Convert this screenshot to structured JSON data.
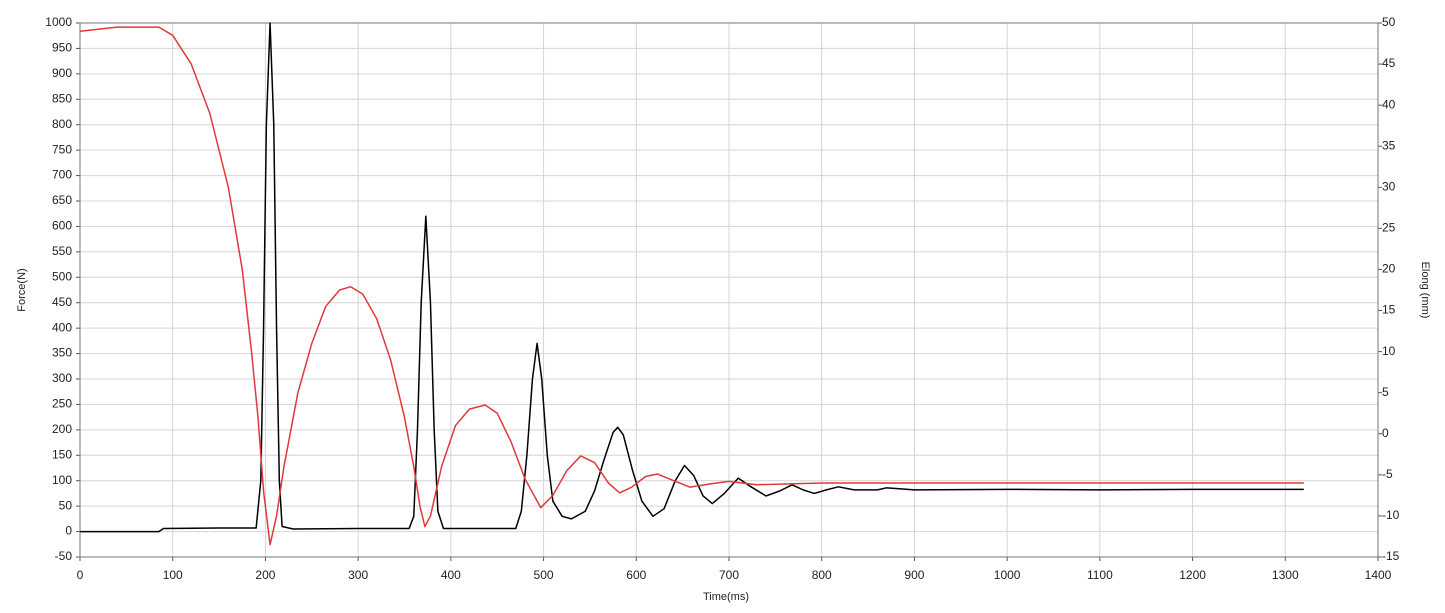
{
  "chart_data": {
    "type": "line",
    "x_label": "Time(ms)",
    "y_label": "Force(N)",
    "y2_label": "Elong (mm)",
    "xlim": [
      0,
      1400
    ],
    "xticks": [
      0,
      100,
      200,
      300,
      400,
      500,
      600,
      700,
      800,
      900,
      1000,
      1100,
      1200,
      1300,
      1400
    ],
    "ylim": [
      -50,
      1000
    ],
    "yticks": [
      -50,
      0,
      50,
      100,
      150,
      200,
      250,
      300,
      350,
      400,
      450,
      500,
      550,
      600,
      650,
      700,
      750,
      800,
      850,
      900,
      950,
      1000
    ],
    "y2lim": [
      -15,
      50
    ],
    "y2ticks": [
      -15,
      -10,
      -5,
      0,
      5,
      10,
      15,
      20,
      25,
      30,
      35,
      40,
      45,
      50
    ],
    "grid": true,
    "series": [
      {
        "name": "Force",
        "color": "#000000",
        "x": [
          0,
          50,
          85,
          90,
          150,
          190,
          195,
          198,
          201,
          205,
          209,
          212,
          215,
          218,
          230,
          300,
          355,
          360,
          364,
          368,
          373,
          378,
          382,
          386,
          392,
          470,
          476,
          482,
          488,
          493,
          498,
          504,
          510,
          520,
          530,
          545,
          555,
          565,
          575,
          580,
          586,
          596,
          606,
          618,
          630,
          642,
          652,
          662,
          672,
          682,
          695,
          710,
          722,
          740,
          755,
          768,
          780,
          792,
          805,
          818,
          835,
          860,
          870,
          900,
          1000,
          1100,
          1200,
          1320
        ],
        "values": [
          0,
          0,
          0,
          6,
          7,
          7,
          100,
          400,
          800,
          1000,
          800,
          400,
          100,
          10,
          5,
          6,
          6,
          30,
          200,
          450,
          620,
          450,
          200,
          40,
          6,
          6,
          40,
          150,
          300,
          370,
          300,
          150,
          60,
          30,
          25,
          40,
          80,
          140,
          195,
          205,
          190,
          120,
          60,
          30,
          45,
          100,
          130,
          110,
          70,
          55,
          75,
          105,
          90,
          70,
          80,
          92,
          82,
          75,
          82,
          88,
          82,
          82,
          86,
          82,
          83,
          82,
          83,
          83
        ]
      },
      {
        "name": "Elong",
        "color": "#e0393a",
        "axis": "y2",
        "x": [
          0,
          40,
          85,
          100,
          120,
          140,
          160,
          175,
          185,
          192,
          198,
          205,
          212,
          220,
          235,
          250,
          265,
          280,
          292,
          305,
          320,
          335,
          350,
          360,
          367,
          372,
          378,
          390,
          405,
          420,
          437,
          450,
          465,
          480,
          497,
          510,
          525,
          540,
          555,
          570,
          582,
          595,
          610,
          623,
          640,
          658,
          680,
          700,
          730,
          800,
          1000,
          1320
        ],
        "values": [
          49,
          49.5,
          49.5,
          48.5,
          45,
          39,
          30,
          20,
          10,
          2,
          -7,
          -13.5,
          -10,
          -4,
          5,
          11,
          15.5,
          17.5,
          17.9,
          17,
          14,
          9,
          2,
          -4,
          -9,
          -11.3,
          -10,
          -4,
          1,
          3,
          3.5,
          2.5,
          -1,
          -5.5,
          -9,
          -7.5,
          -4.5,
          -2.7,
          -3.5,
          -6,
          -7.2,
          -6.5,
          -5.2,
          -4.9,
          -5.7,
          -6.5,
          -6.1,
          -5.8,
          -6.2,
          -6,
          -6,
          -6
        ]
      }
    ]
  }
}
